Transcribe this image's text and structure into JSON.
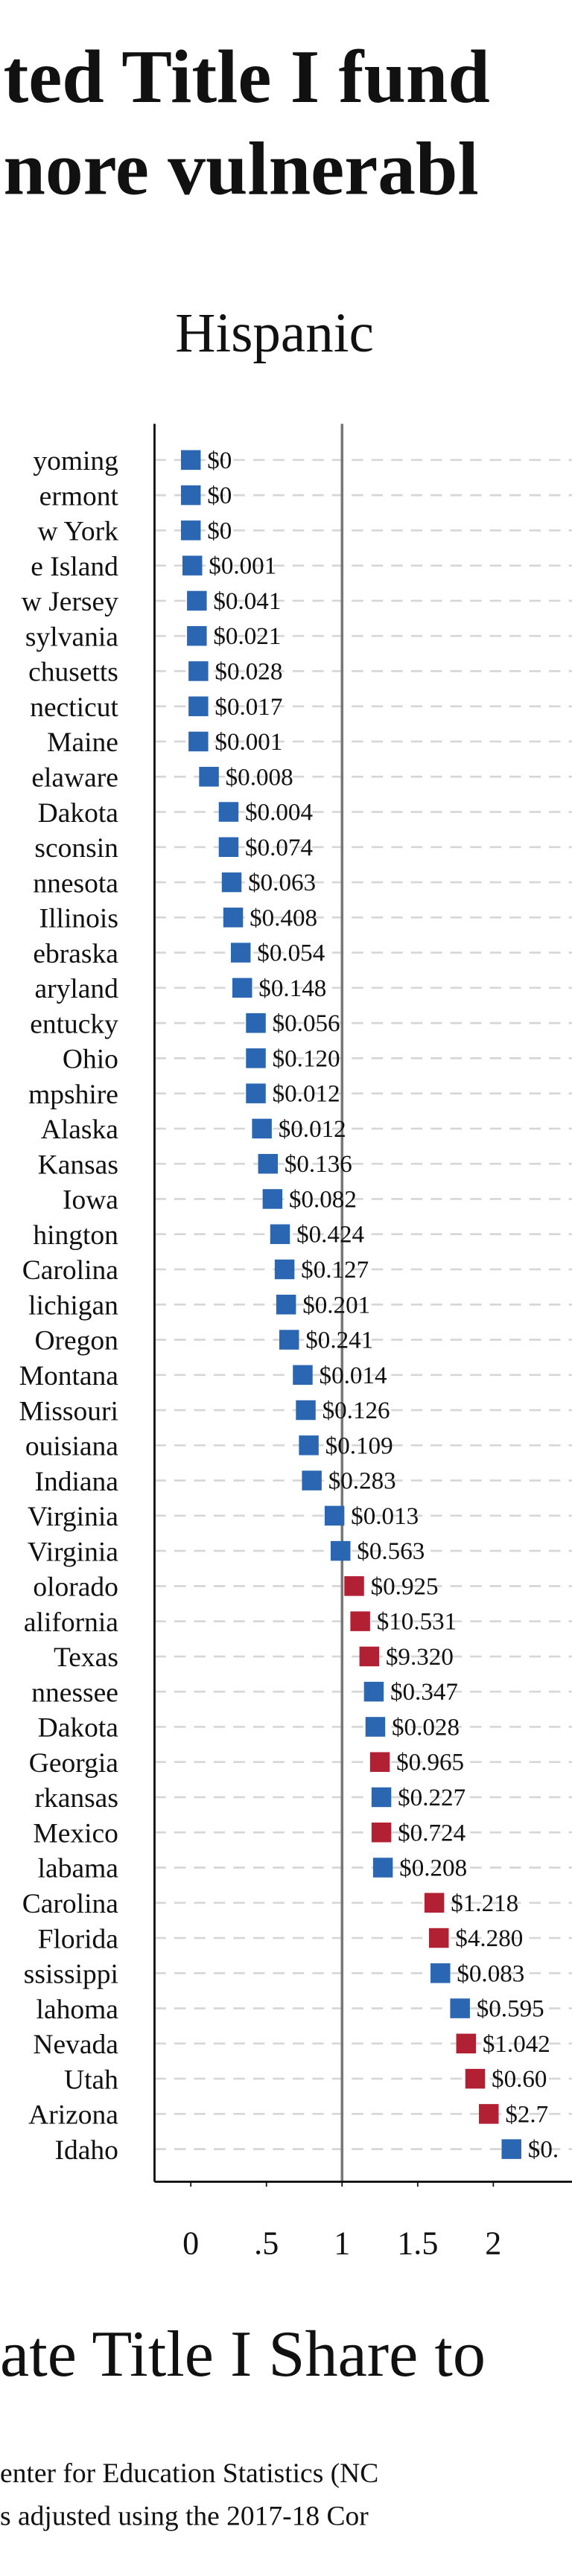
{
  "chart_data": {
    "type": "dot",
    "title_lines": [
      "ted Title I fund",
      "nore vulnerabl"
    ],
    "subtitle": "Hispanic",
    "x_label": "ate Title I Share to",
    "source_lines": [
      "enter for Education Statistics (NC",
      "s adjusted using the 2017-18 Cor"
    ],
    "categories": [
      "yoming",
      "ermont",
      "w York",
      "e Island",
      "w Jersey",
      "sylvania",
      "chusetts",
      "necticut",
      "Maine",
      "elaware",
      "Dakota",
      "sconsin",
      "nnesota",
      "Illinois",
      "ebraska",
      "aryland",
      "entucky",
      "Ohio",
      "mpshire",
      "Alaska",
      "Kansas",
      "Iowa",
      "hington",
      "Carolina",
      "lichigan",
      "Oregon",
      "Montana",
      "Missouri",
      "ouisiana",
      "Indiana",
      "Virginia",
      "Virginia",
      "olorado",
      "alifornia",
      "Texas",
      "nnessee",
      "Dakota",
      "Georgia",
      "rkansas",
      "Mexico",
      "labama",
      "Carolina",
      "Florida",
      "ssissippi",
      "lahoma",
      "Nevada",
      "Utah",
      "Arizona",
      "Idaho"
    ],
    "values": [
      0,
      0,
      0,
      0.01,
      0.04,
      0.04,
      0.05,
      0.05,
      0.05,
      0.12,
      0.25,
      0.25,
      0.27,
      0.28,
      0.33,
      0.34,
      0.43,
      0.43,
      0.43,
      0.47,
      0.51,
      0.54,
      0.59,
      0.62,
      0.63,
      0.65,
      0.74,
      0.76,
      0.78,
      0.8,
      0.95,
      0.99,
      1.08,
      1.12,
      1.18,
      1.21,
      1.22,
      1.25,
      1.26,
      1.26,
      1.27,
      1.61,
      1.64,
      1.65,
      1.78,
      1.82,
      1.88,
      1.97,
      2.12
    ],
    "point_labels": [
      "$0",
      "$0",
      "$0",
      "$0.001",
      "$0.041",
      "$0.021",
      "$0.028",
      "$0.017",
      "$0.001",
      "$0.008",
      "$0.004",
      "$0.074",
      "$0.063",
      "$0.408",
      "$0.054",
      "$0.148",
      "$0.056",
      "$0.120",
      "$0.012",
      "$0.012",
      "$0.136",
      "$0.082",
      "$0.424",
      "$0.127",
      "$0.201",
      "$0.241",
      "$0.014",
      "$0.126",
      "$0.109",
      "$0.283",
      "$0.013",
      "$0.563",
      "$0.925",
      "$10.531",
      "$9.320",
      "$0.347",
      "$0.028",
      "$0.965",
      "$0.227",
      "$0.724",
      "$0.208",
      "$1.218",
      "$4.280",
      "$0.083",
      "$0.595",
      "$1.042",
      "$0.60",
      "$2.7",
      "$0."
    ],
    "colors": [
      "#2a66b1",
      "#2a66b1",
      "#2a66b1",
      "#2a66b1",
      "#2a66b1",
      "#2a66b1",
      "#2a66b1",
      "#2a66b1",
      "#2a66b1",
      "#2a66b1",
      "#2a66b1",
      "#2a66b1",
      "#2a66b1",
      "#2a66b1",
      "#2a66b1",
      "#2a66b1",
      "#2a66b1",
      "#2a66b1",
      "#2a66b1",
      "#2a66b1",
      "#2a66b1",
      "#2a66b1",
      "#2a66b1",
      "#2a66b1",
      "#2a66b1",
      "#2a66b1",
      "#2a66b1",
      "#2a66b1",
      "#2a66b1",
      "#2a66b1",
      "#2a66b1",
      "#2a66b1",
      "#b22033",
      "#b22033",
      "#b22033",
      "#2a66b1",
      "#2a66b1",
      "#b22033",
      "#2a66b1",
      "#b22033",
      "#2a66b1",
      "#b22033",
      "#b22033",
      "#2a66b1",
      "#2a66b1",
      "#b22033",
      "#b22033",
      "#b22033",
      "#2a66b1"
    ],
    "xlim": [
      -0.24,
      2.52
    ],
    "xticks": [
      0,
      {
        "value": 0.5,
        "label": ".5"
      },
      1,
      1.5,
      2
    ],
    "reference_line": 1
  }
}
